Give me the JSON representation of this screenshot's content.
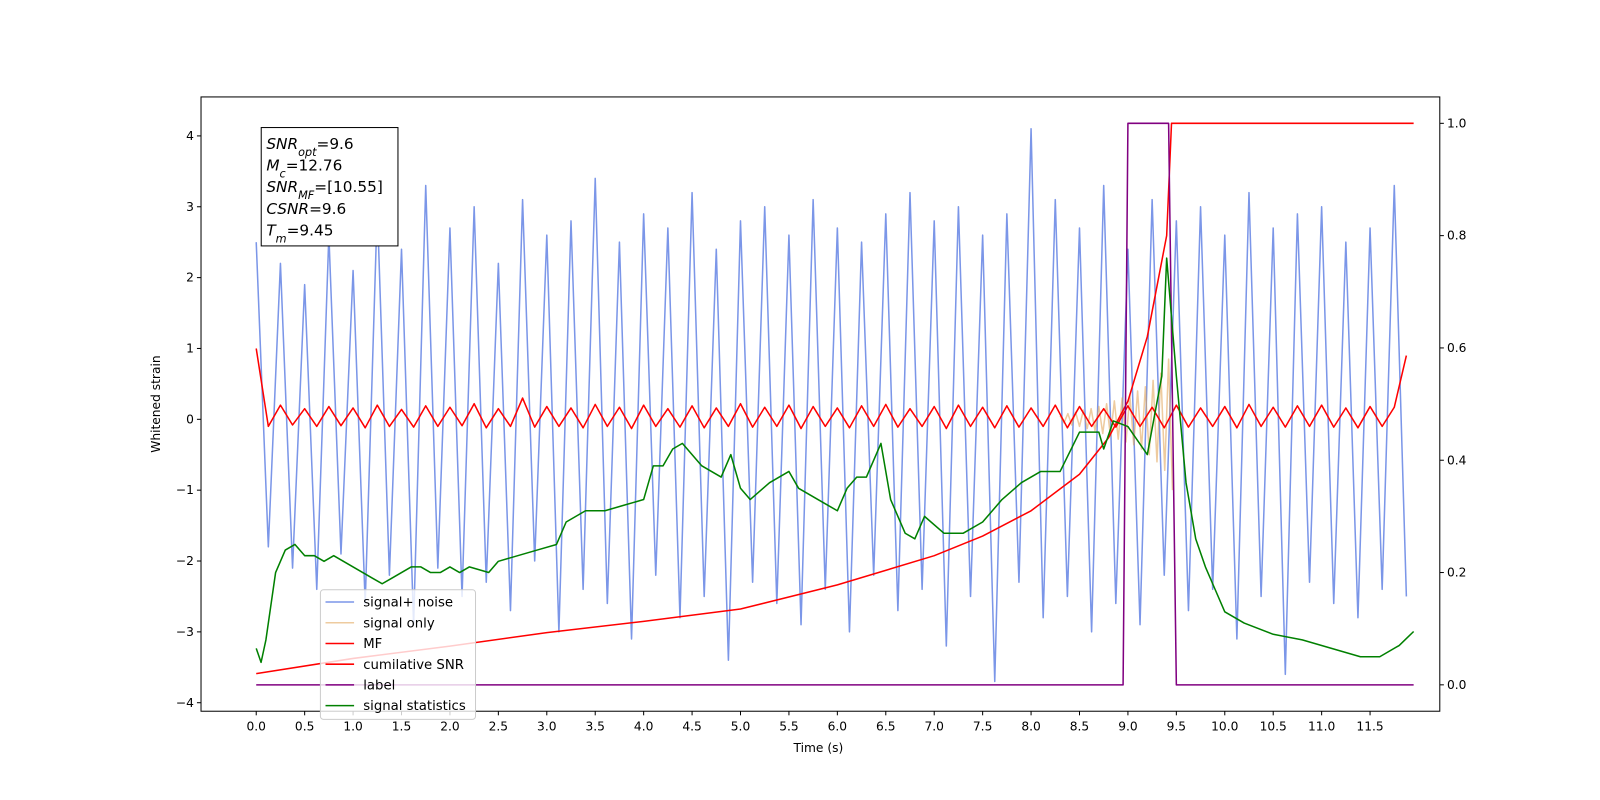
{
  "chart_data": {
    "type": "line",
    "xlabel": "Time (s)",
    "ylabel": "Whitened strain",
    "xlim": [
      -0.57,
      12.22
    ],
    "ylim": [
      -4.12,
      4.55
    ],
    "y2lim": [
      -0.047,
      1.047
    ],
    "xticks": [
      {
        "value": 0,
        "label": "0.0"
      },
      0.5,
      {
        "value": 1,
        "label": "1.0"
      },
      1.5,
      {
        "value": 2,
        "label": "2.0"
      },
      2.5,
      {
        "value": 3,
        "label": "3.0"
      },
      3.5,
      {
        "value": 4,
        "label": "4.0"
      },
      4.5,
      {
        "value": 5,
        "label": "5.0"
      },
      5.5,
      {
        "value": 6,
        "label": "6.0"
      },
      6.5,
      {
        "value": 7,
        "label": "7.0"
      },
      7.5,
      {
        "value": 8,
        "label": "8.0"
      },
      8.5,
      {
        "value": 9,
        "label": "9.0"
      },
      9.5,
      {
        "value": 10,
        "label": "10.0"
      },
      10.5,
      {
        "value": 11,
        "label": "11.0"
      },
      11.5
    ],
    "yticks": [
      {
        "value": -4,
        "label": "−4"
      },
      {
        "value": -3,
        "label": "−3"
      },
      {
        "value": -2,
        "label": "−2"
      },
      {
        "value": -1,
        "label": "−1"
      },
      0,
      1,
      2,
      3,
      4
    ],
    "y2ticks": [
      {
        "value": 0,
        "label": "0.0"
      },
      0.2,
      0.4,
      0.6,
      0.8,
      {
        "value": 1,
        "label": "1.0"
      }
    ],
    "legend_loc": "best",
    "annotation": [
      {
        "symbol": "SNR",
        "subscript": "opt",
        "rest": "=9.6"
      },
      {
        "symbol": "M",
        "subscript": "c",
        "rest": "=12.76"
      },
      {
        "symbol": "SNR",
        "subscript": "MF",
        "rest": "=[10.55]"
      },
      {
        "symbol": "CSNR",
        "subscript": "",
        "rest": "=9.6"
      },
      {
        "symbol": "T",
        "subscript": "m",
        "rest": "=9.45"
      }
    ],
    "x": [
      0,
      0.125,
      0.25,
      0.375,
      0.5,
      0.625,
      0.75,
      0.875,
      1,
      1.125,
      1.25,
      1.375,
      1.5,
      1.625,
      1.75,
      1.875,
      2,
      2.125,
      2.25,
      2.375,
      2.5,
      2.625,
      2.75,
      2.875,
      3,
      3.125,
      3.25,
      3.375,
      3.5,
      3.625,
      3.75,
      3.875,
      4,
      4.125,
      4.25,
      4.375,
      4.5,
      4.625,
      4.75,
      4.875,
      5,
      5.125,
      5.25,
      5.375,
      5.5,
      5.625,
      5.75,
      5.875,
      6,
      6.125,
      6.25,
      6.375,
      6.5,
      6.625,
      6.75,
      6.875,
      7,
      7.125,
      7.25,
      7.375,
      7.5,
      7.625,
      7.75,
      7.875,
      8,
      8.125,
      8.25,
      8.375,
      8.5,
      8.625,
      8.75,
      8.875,
      9,
      9.125,
      9.25,
      9.375,
      9.5,
      9.625,
      9.75,
      9.875,
      10,
      10.125,
      10.25,
      10.375,
      10.5,
      10.625,
      10.75,
      10.875,
      11,
      11.125,
      11.25,
      11.375,
      11.5,
      11.625,
      11.75,
      11.875
    ],
    "series": [
      {
        "name": "signal+ noise",
        "color": "#7b96e8",
        "values": [
          2.5,
          -1.8,
          2.2,
          -2.1,
          1.9,
          -2.4,
          2.6,
          -1.9,
          2.1,
          -2.6,
          3.0,
          -2.2,
          2.4,
          -2.9,
          3.3,
          -2.1,
          2.7,
          -2.5,
          3.0,
          -2.3,
          2.2,
          -2.7,
          3.1,
          -2.0,
          2.6,
          -3.0,
          2.8,
          -2.4,
          3.4,
          -2.6,
          2.5,
          -3.1,
          2.9,
          -2.2,
          2.7,
          -2.8,
          3.2,
          -2.5,
          2.4,
          -3.4,
          2.8,
          -2.3,
          3.0,
          -2.6,
          2.6,
          -2.9,
          3.1,
          -2.4,
          2.7,
          -3.0,
          2.5,
          -2.2,
          2.9,
          -2.7,
          3.2,
          -2.4,
          2.8,
          -3.2,
          3.0,
          -2.5,
          2.6,
          -3.7,
          2.9,
          -2.3,
          4.1,
          -2.8,
          3.1,
          -2.5,
          2.7,
          -3.0,
          3.3,
          -2.6,
          2.4,
          -2.9,
          3.1,
          -2.2,
          2.8,
          -2.7,
          3.0,
          -2.4,
          2.6,
          -3.1,
          3.2,
          -2.5,
          2.7,
          -3.6,
          2.9,
          -2.3,
          3.0,
          -2.6,
          2.5,
          -2.8,
          2.7,
          -2.4,
          3.3,
          -2.5
        ]
      },
      {
        "name": "signal only",
        "color": "#e0a050",
        "x": [
          8.3,
          8.34,
          8.38,
          8.42,
          8.46,
          8.5,
          8.54,
          8.58,
          8.62,
          8.66,
          8.7,
          8.74,
          8.78,
          8.82,
          8.86,
          8.9,
          8.94,
          8.98,
          9.02,
          9.06,
          9.1,
          9.14,
          9.18,
          9.22,
          9.26,
          9.3,
          9.34,
          9.38,
          9.42,
          9.46
        ],
        "values": [
          0.05,
          -0.05,
          0.08,
          -0.08,
          0.1,
          -0.1,
          0.13,
          -0.13,
          0.15,
          -0.16,
          0.18,
          -0.2,
          0.22,
          -0.24,
          0.26,
          -0.28,
          0.3,
          -0.32,
          0.34,
          -0.36,
          0.4,
          -0.42,
          0.46,
          -0.5,
          0.55,
          -0.6,
          0.65,
          -0.72,
          0.85,
          -1.0
        ]
      },
      {
        "name": "MF",
        "color": "#ff0000",
        "values": [
          1.0,
          -0.1,
          0.2,
          -0.08,
          0.15,
          -0.1,
          0.18,
          -0.09,
          0.16,
          -0.12,
          0.2,
          -0.1,
          0.14,
          -0.11,
          0.19,
          -0.1,
          0.17,
          -0.09,
          0.22,
          -0.12,
          0.15,
          -0.1,
          0.3,
          -0.11,
          0.18,
          -0.1,
          0.16,
          -0.12,
          0.21,
          -0.1,
          0.17,
          -0.13,
          0.2,
          -0.1,
          0.15,
          -0.11,
          0.19,
          -0.12,
          0.16,
          -0.1,
          0.22,
          -0.11,
          0.17,
          -0.1,
          0.2,
          -0.13,
          0.18,
          -0.1,
          0.16,
          -0.12,
          0.19,
          -0.1,
          0.21,
          -0.11,
          0.15,
          -0.1,
          0.18,
          -0.13,
          0.2,
          -0.1,
          0.17,
          -0.12,
          0.19,
          -0.11,
          0.16,
          -0.1,
          0.2,
          -0.12,
          0.18,
          -0.1,
          0.15,
          -0.11,
          0.19,
          -0.1,
          0.17,
          -0.12,
          0.2,
          -0.11,
          0.16,
          -0.1,
          0.18,
          -0.12,
          0.21,
          -0.1,
          0.17,
          -0.11,
          0.19,
          -0.1,
          0.2,
          -0.11,
          0.16,
          -0.12,
          0.18,
          -0.1,
          0.17,
          0.9
        ]
      },
      {
        "name": "cumilative SNR",
        "color": "#ff0000",
        "axis": "y2",
        "x": [
          0,
          1,
          2,
          3,
          4,
          5,
          6,
          7,
          7.5,
          8,
          8.5,
          8.8,
          9,
          9.2,
          9.4,
          9.45,
          11.95
        ],
        "values": [
          0.02,
          0.047,
          0.069,
          0.093,
          0.113,
          0.135,
          0.178,
          0.23,
          0.265,
          0.31,
          0.375,
          0.44,
          0.505,
          0.62,
          0.8,
          1.0,
          1.0
        ]
      },
      {
        "name": "label",
        "color": "#800080",
        "axis": "y2",
        "x": [
          0,
          8.95,
          9.0,
          9.42,
          9.5,
          11.95
        ],
        "values": [
          0,
          0,
          1,
          1,
          0,
          0
        ]
      },
      {
        "name": "signal statistics",
        "color": "#008000",
        "axis": "y2",
        "x": [
          0,
          0.05,
          0.1,
          0.2,
          0.3,
          0.4,
          0.5,
          0.6,
          0.7,
          0.8,
          0.9,
          1.0,
          1.1,
          1.2,
          1.3,
          1.4,
          1.5,
          1.6,
          1.7,
          1.8,
          1.9,
          2.0,
          2.1,
          2.2,
          2.4,
          2.5,
          2.7,
          2.9,
          3.1,
          3.2,
          3.4,
          3.6,
          3.8,
          4.0,
          4.1,
          4.2,
          4.3,
          4.4,
          4.6,
          4.7,
          4.8,
          4.9,
          5.0,
          5.1,
          5.3,
          5.5,
          5.6,
          5.8,
          6.0,
          6.1,
          6.2,
          6.3,
          6.45,
          6.55,
          6.7,
          6.8,
          6.9,
          7.1,
          7.3,
          7.5,
          7.7,
          7.9,
          8.1,
          8.3,
          8.5,
          8.7,
          8.75,
          8.85,
          9.0,
          9.2,
          9.35,
          9.4,
          9.5,
          9.6,
          9.7,
          9.8,
          9.9,
          10.0,
          10.2,
          10.5,
          10.8,
          11.0,
          11.2,
          11.4,
          11.6,
          11.8,
          11.95
        ],
        "values": [
          0.065,
          0.04,
          0.08,
          0.2,
          0.24,
          0.25,
          0.23,
          0.23,
          0.22,
          0.23,
          0.22,
          0.21,
          0.2,
          0.19,
          0.18,
          0.19,
          0.2,
          0.21,
          0.21,
          0.2,
          0.2,
          0.21,
          0.2,
          0.21,
          0.2,
          0.22,
          0.23,
          0.24,
          0.25,
          0.29,
          0.31,
          0.31,
          0.32,
          0.33,
          0.39,
          0.39,
          0.42,
          0.43,
          0.39,
          0.38,
          0.37,
          0.41,
          0.35,
          0.33,
          0.36,
          0.38,
          0.35,
          0.33,
          0.31,
          0.35,
          0.37,
          0.37,
          0.43,
          0.33,
          0.27,
          0.26,
          0.3,
          0.27,
          0.27,
          0.29,
          0.33,
          0.36,
          0.38,
          0.38,
          0.45,
          0.45,
          0.42,
          0.47,
          0.46,
          0.41,
          0.55,
          0.76,
          0.55,
          0.36,
          0.26,
          0.21,
          0.17,
          0.13,
          0.11,
          0.09,
          0.08,
          0.07,
          0.06,
          0.05,
          0.05,
          0.07,
          0.095
        ]
      }
    ]
  }
}
